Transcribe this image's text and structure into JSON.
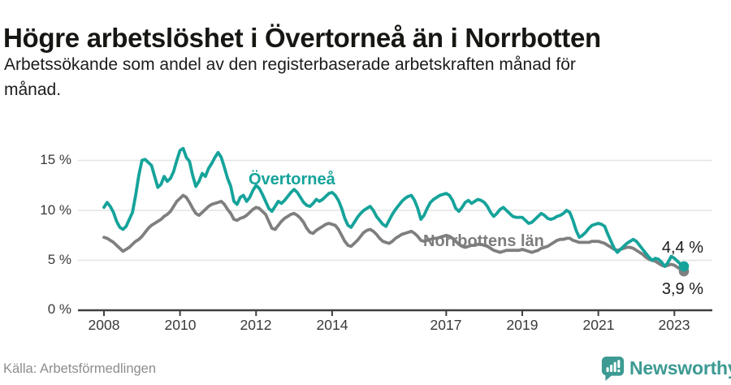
{
  "header": {
    "title": "Högre arbetslöshet i Övertorneå än i Norrbotten",
    "subtitle_lines": [
      "Arbetssökande som andel av den registerbaserade arbetskraften månad för",
      "månad."
    ]
  },
  "chart_data": {
    "type": "line",
    "title": "Högre arbetslöshet i Övertorneå än i Norrbotten",
    "xlabel": "",
    "ylabel": "",
    "unit": "%",
    "frequency": "monthly",
    "x_start": "2008-01",
    "x_end": "2023-04",
    "ylim": [
      0,
      17
    ],
    "grid": "horizontal",
    "legend_position": "inline-labels",
    "y_ticks": [
      "15 %",
      "10 %",
      "5 %",
      "0 %"
    ],
    "y_tick_values": [
      15,
      10,
      5,
      0
    ],
    "x_ticks": [
      "2008",
      "2010",
      "2012",
      "2014",
      "2017",
      "2019",
      "2021",
      "2023"
    ],
    "series": [
      {
        "name": "Norrbottens län",
        "color": "#7f7f7f",
        "end_label": "3,9 %",
        "end_value": 3.9,
        "values": [
          7.3,
          7.2,
          7.0,
          6.8,
          6.5,
          6.2,
          5.9,
          6.1,
          6.3,
          6.6,
          6.9,
          7.1,
          7.4,
          7.8,
          8.2,
          8.5,
          8.7,
          8.9,
          9.1,
          9.4,
          9.6,
          9.9,
          10.4,
          10.9,
          11.2,
          11.5,
          11.3,
          10.8,
          10.2,
          9.7,
          9.5,
          9.8,
          10.1,
          10.4,
          10.6,
          10.7,
          10.8,
          10.9,
          10.6,
          10.1,
          9.7,
          9.1,
          9.0,
          9.2,
          9.3,
          9.5,
          9.8,
          10.1,
          10.3,
          10.2,
          9.9,
          9.6,
          8.9,
          8.2,
          8.1,
          8.5,
          8.9,
          9.2,
          9.4,
          9.6,
          9.7,
          9.5,
          9.2,
          8.8,
          8.2,
          7.8,
          7.7,
          8.0,
          8.2,
          8.4,
          8.6,
          8.7,
          8.6,
          8.5,
          8.1,
          7.5,
          6.9,
          6.5,
          6.4,
          6.7,
          7.0,
          7.4,
          7.8,
          8.0,
          8.1,
          7.9,
          7.6,
          7.2,
          6.9,
          6.8,
          6.7,
          6.9,
          7.2,
          7.4,
          7.6,
          7.7,
          7.8,
          7.9,
          7.7,
          7.4,
          7.0,
          6.9,
          7.0,
          7.1,
          7.2,
          7.2,
          7.3,
          7.4,
          7.5,
          7.4,
          7.2,
          6.9,
          6.6,
          6.4,
          6.3,
          6.4,
          6.5,
          6.5,
          6.6,
          6.6,
          6.5,
          6.4,
          6.2,
          6.0,
          5.9,
          5.8,
          5.9,
          6.0,
          6.0,
          6.0,
          6.0,
          6.0,
          6.1,
          6.0,
          5.9,
          5.8,
          5.9,
          6.0,
          6.2,
          6.3,
          6.4,
          6.6,
          6.8,
          7.0,
          7.1,
          7.1,
          7.2,
          7.2,
          7.0,
          6.9,
          6.8,
          6.8,
          6.8,
          6.8,
          6.9,
          6.9,
          6.9,
          6.8,
          6.7,
          6.5,
          6.3,
          6.1,
          6.0,
          6.1,
          6.2,
          6.3,
          6.3,
          6.2,
          6.0,
          5.8,
          5.6,
          5.3,
          5.1,
          5.0,
          4.9,
          4.7,
          4.5,
          4.4,
          4.5,
          4.6,
          4.5,
          4.3,
          4.1,
          3.9
        ]
      },
      {
        "name": "Övertorneå",
        "color": "#15a39a",
        "end_label": "4,4 %",
        "end_value": 4.4,
        "values": [
          10.3,
          10.8,
          10.4,
          9.8,
          8.9,
          8.3,
          8.1,
          8.4,
          9.1,
          9.8,
          11.5,
          13.5,
          15.0,
          15.1,
          14.8,
          14.5,
          13.4,
          12.3,
          12.6,
          13.4,
          12.9,
          13.2,
          13.9,
          15.0,
          16.0,
          16.2,
          15.3,
          14.9,
          13.5,
          12.4,
          12.9,
          13.7,
          13.4,
          14.2,
          14.7,
          15.3,
          15.8,
          15.3,
          14.3,
          13.2,
          12.4,
          10.9,
          10.6,
          11.3,
          11.5,
          10.9,
          11.3,
          12.0,
          12.5,
          12.2,
          11.6,
          10.9,
          10.2,
          9.9,
          10.4,
          10.9,
          10.7,
          11.0,
          11.4,
          11.8,
          12.1,
          11.8,
          11.3,
          10.8,
          10.5,
          10.4,
          10.7,
          11.1,
          10.9,
          11.1,
          11.4,
          11.7,
          11.8,
          11.5,
          11.0,
          10.2,
          9.2,
          8.5,
          8.3,
          8.8,
          9.3,
          9.7,
          10.0,
          10.2,
          10.4,
          10.0,
          9.4,
          9.0,
          8.6,
          8.4,
          9.0,
          9.6,
          10.1,
          10.5,
          10.9,
          11.2,
          11.4,
          11.5,
          11.0,
          10.2,
          9.1,
          9.5,
          10.2,
          10.8,
          11.1,
          11.3,
          11.5,
          11.6,
          11.7,
          11.5,
          11.0,
          10.2,
          9.9,
          10.3,
          10.8,
          11.0,
          10.7,
          10.9,
          11.1,
          11.0,
          10.8,
          10.4,
          9.8,
          9.4,
          9.7,
          10.1,
          10.3,
          10.0,
          9.7,
          9.4,
          9.3,
          9.3,
          9.3,
          9.0,
          8.7,
          8.8,
          9.1,
          9.4,
          9.7,
          9.5,
          9.2,
          9.1,
          9.2,
          9.4,
          9.5,
          9.7,
          10.0,
          9.8,
          9.0,
          8.0,
          7.3,
          7.5,
          7.8,
          8.2,
          8.5,
          8.6,
          8.7,
          8.6,
          8.4,
          7.6,
          6.9,
          6.2,
          5.8,
          6.1,
          6.4,
          6.7,
          6.9,
          7.1,
          6.9,
          6.5,
          6.1,
          5.7,
          5.3,
          5.0,
          5.2,
          5.1,
          4.8,
          4.4,
          4.8,
          5.4,
          5.2,
          4.9,
          4.6,
          4.4
        ]
      }
    ]
  },
  "footer": {
    "source": "Källa: Arbetsförmedlingen",
    "brand_name": "Newsworthy",
    "brand_icon": "newsworthy-bar-chart-bubble-icon",
    "brand_color": "#3c9a93"
  }
}
